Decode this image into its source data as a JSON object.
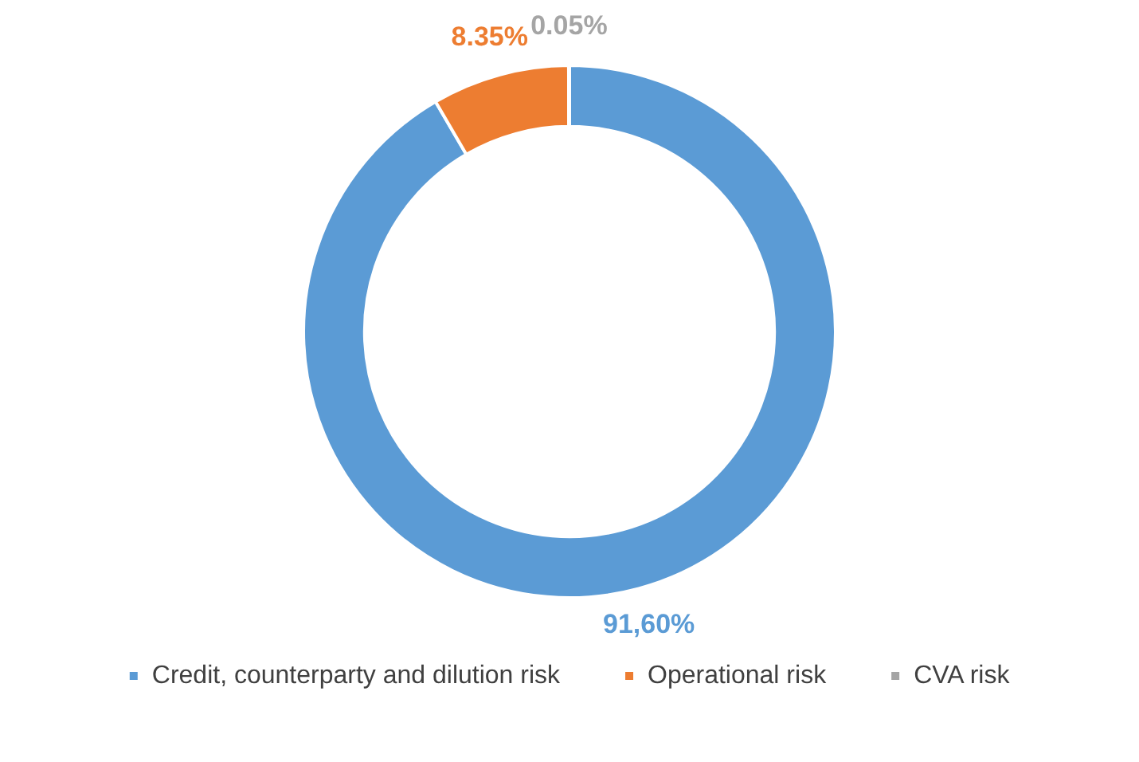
{
  "chart_data": {
    "type": "donut",
    "categories": [
      "Credit, counterparty and dilution risk",
      "Operational risk",
      "CVA risk"
    ],
    "values": [
      91.6,
      8.35,
      0.05
    ],
    "colors": [
      "#5b9bd5",
      "#ed7d31",
      "#a5a5a5"
    ],
    "value_labels": [
      "91,60%",
      "8.35%",
      "0.05%"
    ],
    "legend": "bottom"
  }
}
